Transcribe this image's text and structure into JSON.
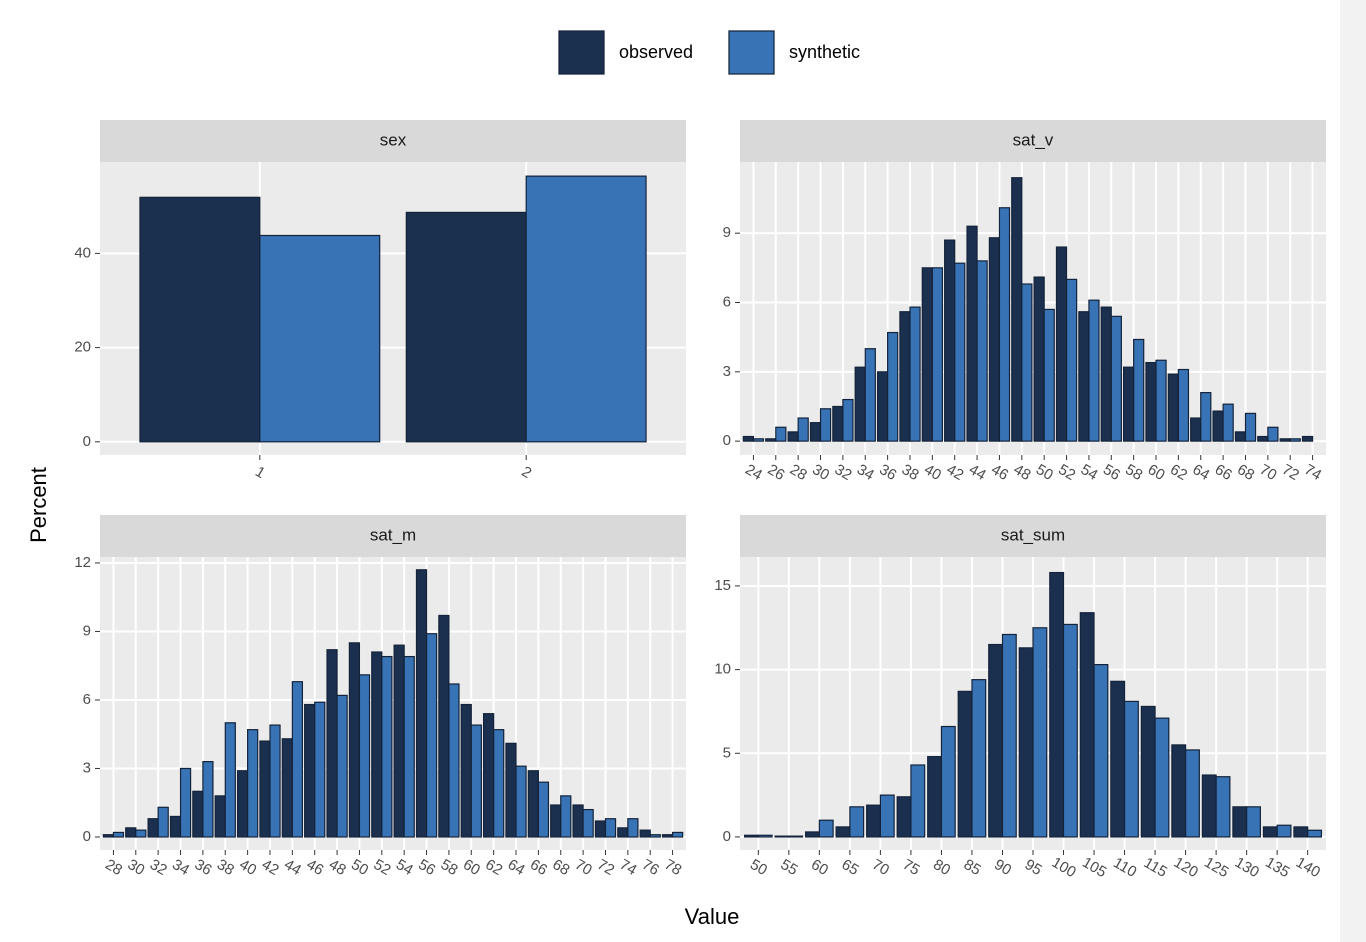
{
  "legend": "top",
  "ylabel": "Percent",
  "xlabel": "Value",
  "chart_data": [
    {
      "type": "bar",
      "title": "sex",
      "categories": [
        "1",
        "2"
      ],
      "grid": true,
      "ylim": [
        -2.8,
        59.4
      ],
      "yticks": [
        0,
        20,
        40
      ],
      "series": [
        {
          "name": "observed",
          "color": "#1b2f4e",
          "values": [
            51.9,
            48.7
          ]
        },
        {
          "name": "synthetic",
          "color": "#3873b5",
          "values": [
            43.8,
            56.4
          ]
        }
      ]
    },
    {
      "type": "bar",
      "title": "sat_v",
      "grid": true,
      "categories": [
        "24",
        "26",
        "28",
        "30",
        "32",
        "34",
        "36",
        "38",
        "40",
        "42",
        "44",
        "46",
        "48",
        "50",
        "52",
        "54",
        "56",
        "58",
        "60",
        "62",
        "64",
        "66",
        "68",
        "70",
        "72",
        "74"
      ],
      "ylim": [
        -0.6,
        12.08
      ],
      "yticks": [
        0,
        3,
        6,
        9
      ],
      "series": [
        {
          "name": "observed",
          "color": "#1b2f4e",
          "values": [
            0.2,
            0.1,
            0.4,
            0.8,
            1.5,
            3.2,
            3.0,
            5.6,
            7.5,
            8.7,
            9.3,
            8.8,
            11.4,
            7.1,
            8.4,
            5.6,
            5.8,
            3.2,
            3.4,
            2.9,
            1.0,
            1.3,
            0.4,
            0.2,
            0.1,
            0.2
          ]
        },
        {
          "name": "synthetic",
          "color": "#3873b5",
          "values": [
            0.1,
            0.6,
            1.0,
            1.4,
            1.8,
            4.0,
            4.7,
            5.8,
            7.5,
            7.7,
            7.8,
            10.1,
            6.8,
            5.7,
            7.0,
            6.1,
            5.4,
            4.4,
            3.5,
            3.1,
            2.1,
            1.6,
            1.2,
            0.6,
            0.1,
            0.0
          ]
        }
      ]
    },
    {
      "type": "bar",
      "title": "sat_m",
      "grid": true,
      "categories": [
        "28",
        "30",
        "32",
        "34",
        "36",
        "38",
        "40",
        "42",
        "44",
        "46",
        "48",
        "50",
        "52",
        "54",
        "56",
        "58",
        "60",
        "62",
        "64",
        "66",
        "68",
        "70",
        "72",
        "74",
        "76",
        "78"
      ],
      "ylim": [
        -0.57,
        12.26
      ],
      "yticks": [
        0,
        3,
        6,
        9,
        12
      ],
      "series": [
        {
          "name": "observed",
          "color": "#1b2f4e",
          "values": [
            0.1,
            0.4,
            0.8,
            0.9,
            2.0,
            1.8,
            2.9,
            4.2,
            4.3,
            5.8,
            8.2,
            8.5,
            8.1,
            8.4,
            11.7,
            9.7,
            5.8,
            5.4,
            4.1,
            2.9,
            1.4,
            1.4,
            0.7,
            0.4,
            0.3,
            0.1
          ]
        },
        {
          "name": "synthetic",
          "color": "#3873b5",
          "values": [
            0.2,
            0.3,
            1.3,
            3.0,
            3.3,
            5.0,
            4.7,
            4.9,
            6.8,
            5.9,
            6.2,
            7.1,
            7.9,
            7.9,
            8.9,
            6.7,
            4.9,
            4.7,
            3.1,
            2.4,
            1.8,
            1.2,
            0.8,
            0.8,
            0.1,
            0.2
          ]
        }
      ]
    },
    {
      "type": "bar",
      "title": "sat_sum",
      "grid": true,
      "categories": [
        "50",
        "55",
        "60",
        "65",
        "70",
        "75",
        "80",
        "85",
        "90",
        "95",
        "100",
        "105",
        "110",
        "115",
        "120",
        "125",
        "130",
        "135",
        "140"
      ],
      "ylim": [
        -0.78,
        16.73
      ],
      "yticks": [
        0,
        5,
        10,
        15
      ],
      "series": [
        {
          "name": "observed",
          "color": "#1b2f4e",
          "values": [
            0.1,
            0.05,
            0.3,
            0.6,
            1.9,
            2.4,
            4.8,
            8.7,
            11.5,
            11.3,
            15.8,
            13.4,
            9.3,
            7.8,
            5.5,
            3.7,
            1.8,
            0.6,
            0.6
          ]
        },
        {
          "name": "synthetic",
          "color": "#3873b5",
          "values": [
            0.1,
            0.05,
            1.0,
            1.8,
            2.5,
            4.3,
            6.6,
            9.4,
            12.1,
            12.5,
            12.7,
            10.3,
            8.1,
            7.1,
            5.2,
            3.6,
            1.8,
            0.7,
            0.4
          ]
        }
      ]
    }
  ]
}
